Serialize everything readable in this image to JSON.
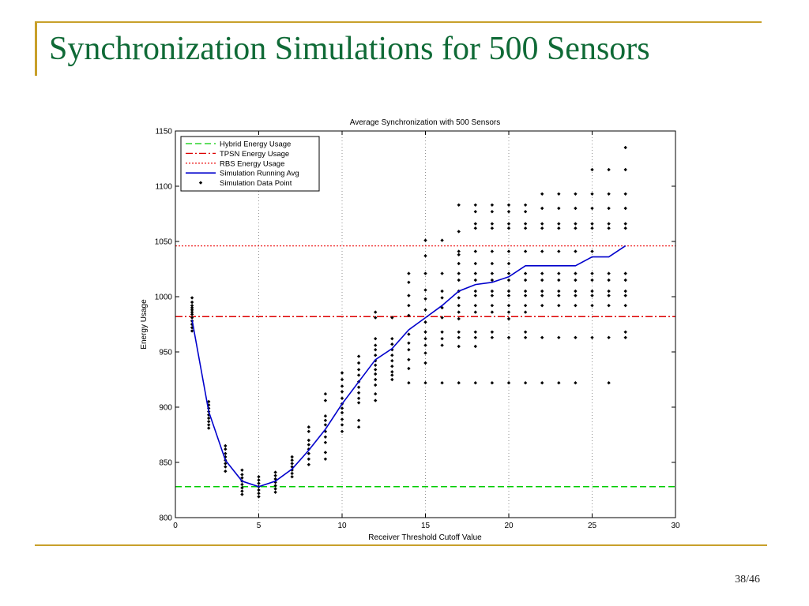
{
  "slide": {
    "title": "Synchronization Simulations for 500 Sensors",
    "page": "38/46",
    "accent_color": "#c8a02a",
    "title_color": "#0f6a36"
  },
  "chart_data": {
    "type": "scatter",
    "title": "Average Synchronization with 500 Sensors",
    "xlabel": "Receiver Threshold Cutoff Value",
    "ylabel": "Energy Usage",
    "xlim": [
      0,
      30
    ],
    "ylim": [
      800,
      1150
    ],
    "xticks": [
      0,
      5,
      10,
      15,
      20,
      25,
      30
    ],
    "yticks": [
      800,
      850,
      900,
      950,
      1000,
      1050,
      1100,
      1150
    ],
    "grid": "x-dotted",
    "legend_position": "top-left",
    "reference_lines": [
      {
        "name": "Hybrid Energy Usage",
        "y": 828,
        "color": "#00cc00",
        "style": "dashed"
      },
      {
        "name": "TPSN Energy Usage",
        "y": 982,
        "color": "#dd0000",
        "style": "dash-dot"
      },
      {
        "name": "RBS Energy Usage",
        "y": 1046,
        "color": "#ee2222",
        "style": "dotted"
      }
    ],
    "running_avg": {
      "name": "Simulation Running Avg",
      "color": "#0000cc",
      "x": [
        1,
        2,
        3,
        4,
        5,
        6,
        7,
        8,
        9,
        10,
        11,
        12,
        13,
        14,
        15,
        16,
        17,
        18,
        19,
        20,
        21,
        22,
        23,
        24,
        25,
        26,
        27
      ],
      "y": [
        979,
        896,
        852,
        833,
        828,
        833,
        844,
        861,
        880,
        903,
        923,
        943,
        953,
        970,
        981,
        992,
        1005,
        1011,
        1013,
        1018,
        1028,
        1028,
        1028,
        1028,
        1036,
        1036,
        1046
      ]
    },
    "data_points": {
      "name": "Simulation Data Point",
      "color": "#000000",
      "groups": [
        {
          "x": 1,
          "y": [
            999,
            995,
            992,
            990,
            988,
            986,
            984,
            981,
            978,
            975,
            972,
            969
          ]
        },
        {
          "x": 2,
          "y": [
            905,
            902,
            899,
            896,
            893,
            890,
            887,
            884,
            881
          ]
        },
        {
          "x": 3,
          "y": [
            865,
            862,
            858,
            855,
            852,
            849,
            846,
            842
          ]
        },
        {
          "x": 4,
          "y": [
            843,
            839,
            836,
            833,
            830,
            827,
            824,
            821
          ]
        },
        {
          "x": 5,
          "y": [
            837,
            834,
            831,
            828,
            825,
            822,
            819
          ]
        },
        {
          "x": 6,
          "y": [
            841,
            838,
            835,
            832,
            829,
            826,
            823
          ]
        },
        {
          "x": 7,
          "y": [
            855,
            852,
            849,
            846,
            843,
            840,
            837
          ]
        },
        {
          "x": 8,
          "y": [
            882,
            878,
            870,
            866,
            862,
            858,
            853,
            848
          ]
        },
        {
          "x": 9,
          "y": [
            912,
            906,
            892,
            888,
            884,
            878,
            873,
            868,
            859,
            853
          ]
        },
        {
          "x": 10,
          "y": [
            931,
            925,
            919,
            914,
            908,
            903,
            899,
            895,
            889,
            884,
            878
          ]
        },
        {
          "x": 11,
          "y": [
            946,
            940,
            934,
            929,
            923,
            918,
            913,
            908,
            904,
            888,
            882
          ]
        },
        {
          "x": 12,
          "y": [
            986,
            981,
            962,
            956,
            952,
            947,
            942,
            938,
            934,
            930,
            925,
            920,
            912,
            906
          ]
        },
        {
          "x": 13,
          "y": [
            981,
            962,
            957,
            952,
            947,
            942,
            937,
            932,
            929,
            925
          ]
        },
        {
          "x": 14,
          "y": [
            1021,
            1013,
            1001,
            992,
            983,
            966,
            958,
            952,
            943,
            935,
            922
          ]
        },
        {
          "x": 15,
          "y": [
            1051,
            1037,
            1021,
            1006,
            998,
            988,
            977,
            968,
            962,
            956,
            949,
            940,
            922
          ]
        },
        {
          "x": 16,
          "y": [
            1051,
            1021,
            1005,
            999,
            990,
            981,
            968,
            962,
            956,
            922
          ]
        },
        {
          "x": 17,
          "y": [
            1083,
            1059,
            1041,
            1038,
            1030,
            1021,
            1015,
            1005,
            999,
            992,
            986,
            980,
            968,
            963,
            955,
            922
          ]
        },
        {
          "x": 18,
          "y": [
            1083,
            1077,
            1066,
            1062,
            1041,
            1030,
            1021,
            1015,
            1005,
            1001,
            992,
            986,
            968,
            963,
            955,
            922
          ]
        },
        {
          "x": 19,
          "y": [
            1083,
            1077,
            1066,
            1062,
            1041,
            1030,
            1021,
            1015,
            1005,
            1001,
            992,
            986,
            968,
            963,
            922
          ]
        },
        {
          "x": 20,
          "y": [
            1083,
            1077,
            1066,
            1062,
            1041,
            1030,
            1021,
            1015,
            1005,
            1001,
            992,
            986,
            980,
            963,
            922
          ]
        },
        {
          "x": 21,
          "y": [
            1083,
            1077,
            1066,
            1062,
            1041,
            1021,
            1015,
            1005,
            1001,
            992,
            986,
            968,
            963,
            922
          ]
        },
        {
          "x": 22,
          "y": [
            1093,
            1080,
            1066,
            1062,
            1041,
            1021,
            1015,
            1005,
            1001,
            992,
            963,
            922
          ]
        },
        {
          "x": 23,
          "y": [
            1093,
            1080,
            1066,
            1062,
            1041,
            1021,
            1015,
            1005,
            1001,
            992,
            963,
            922
          ]
        },
        {
          "x": 24,
          "y": [
            1093,
            1080,
            1066,
            1062,
            1041,
            1021,
            1015,
            1005,
            1001,
            992,
            963,
            922
          ]
        },
        {
          "x": 25,
          "y": [
            1115,
            1093,
            1080,
            1066,
            1062,
            1041,
            1021,
            1015,
            1005,
            1001,
            992,
            963
          ]
        },
        {
          "x": 26,
          "y": [
            1115,
            1093,
            1080,
            1066,
            1062,
            1021,
            1015,
            1005,
            1001,
            992,
            963,
            922
          ]
        },
        {
          "x": 27,
          "y": [
            1135,
            1115,
            1093,
            1080,
            1066,
            1062,
            1021,
            1015,
            1005,
            1001,
            992,
            968,
            963
          ]
        }
      ]
    },
    "legend": [
      {
        "label": "Hybrid Energy Usage",
        "color": "#00cc00",
        "style": "dashed"
      },
      {
        "label": "TPSN Energy Usage",
        "color": "#dd0000",
        "style": "dash-dot"
      },
      {
        "label": "RBS Energy Usage",
        "color": "#ee2222",
        "style": "dotted"
      },
      {
        "label": "Simulation Running Avg",
        "color": "#0000cc",
        "style": "solid"
      },
      {
        "label": "Simulation Data Point",
        "color": "#000000",
        "style": "marker"
      }
    ]
  }
}
